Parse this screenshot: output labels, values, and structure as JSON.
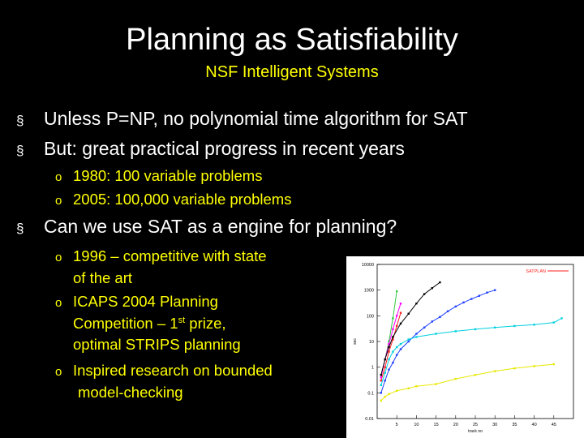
{
  "slide": {
    "title": "Planning as Satisfiability",
    "subtitle": "NSF Intelligent Systems",
    "bullet_marker": "§",
    "sub_marker": "o",
    "bullets": [
      "Unless P=NP, no polynomial time algorithm for SAT",
      "But: great practical progress in recent years",
      "Can we use SAT as a engine for planning?"
    ],
    "sub_bullets_progress": [
      "1980: 100 variable problems",
      "2005: 100,000 variable problems"
    ],
    "sub_bullets_planning": {
      "item1_line1": "1996 – competitive with state",
      "item1_line2": "of the art",
      "item2_line1": "ICAPS 2004 Planning",
      "item2_line2a": "Competition – 1",
      "item2_sup": "st",
      "item2_line2b": " prize,",
      "item2_line3": "optimal STRIPS planning",
      "item3_line1": "Inspired research on bounded",
      "item3_line2": "model-checking"
    }
  },
  "chart_data": {
    "type": "line",
    "xlabel": "track no",
    "ylabel": "sec",
    "y_scale": "log",
    "xlim": [
      0,
      50
    ],
    "ylim": [
      0.01,
      10000
    ],
    "x_ticks": [
      "5",
      "10",
      "15",
      "20",
      "25",
      "30",
      "35",
      "40",
      "45"
    ],
    "y_ticks": [
      "0.01",
      "0.1",
      "1",
      "10",
      "100",
      "1000",
      "10000"
    ],
    "legend_position": "top-right",
    "colors": {
      "SATPLAN": "#ff2020",
      "s1": "#2ecc40",
      "s2": "#ff00ff",
      "s3": "#00c8ff",
      "s4": "#ffd700",
      "s5": "#000000",
      "blue": "#1f3fff",
      "cyan": "#00d0e0",
      "yellow": "#e8e800"
    },
    "series": [
      {
        "name": "SATPLAN",
        "color": "#ff2020",
        "x": [
          1,
          2,
          3,
          4,
          5,
          6
        ],
        "y": [
          0.3,
          1,
          4,
          12,
          40,
          130
        ]
      },
      {
        "color": "#2ecc40",
        "x": [
          1,
          2,
          3,
          4,
          5
        ],
        "y": [
          0.5,
          2,
          10,
          80,
          900
        ]
      },
      {
        "color": "#ff00ff",
        "x": [
          1,
          2,
          3,
          4,
          5,
          6
        ],
        "y": [
          0.4,
          2,
          8,
          30,
          100,
          300
        ]
      },
      {
        "color": "#000000",
        "x": [
          1,
          2,
          3,
          4,
          6,
          8,
          10,
          12,
          14,
          16
        ],
        "y": [
          0.5,
          2,
          6,
          15,
          50,
          120,
          300,
          700,
          1200,
          2000
        ]
      },
      {
        "color": "#1f3fff",
        "x": [
          1,
          2,
          3,
          4,
          5,
          6,
          8,
          10,
          12,
          14,
          16,
          18,
          20,
          22,
          24,
          26,
          28,
          30
        ],
        "y": [
          0.1,
          0.3,
          0.8,
          1.5,
          3,
          5,
          10,
          20,
          35,
          60,
          90,
          150,
          230,
          330,
          450,
          600,
          800,
          1000
        ]
      },
      {
        "color": "#00d0e0",
        "x": [
          1,
          2,
          3,
          4,
          5,
          6,
          8,
          10,
          15,
          20,
          25,
          30,
          35,
          40,
          45,
          47
        ],
        "y": [
          0.2,
          0.6,
          2,
          4,
          6,
          8,
          12,
          15,
          20,
          25,
          30,
          35,
          40,
          45,
          55,
          80
        ]
      },
      {
        "color": "#e8e800",
        "x": [
          1,
          2,
          3,
          5,
          8,
          10,
          15,
          20,
          25,
          30,
          35,
          40,
          45
        ],
        "y": [
          0.05,
          0.07,
          0.09,
          0.12,
          0.15,
          0.18,
          0.22,
          0.35,
          0.5,
          0.7,
          0.9,
          1.1,
          1.3
        ]
      }
    ]
  }
}
